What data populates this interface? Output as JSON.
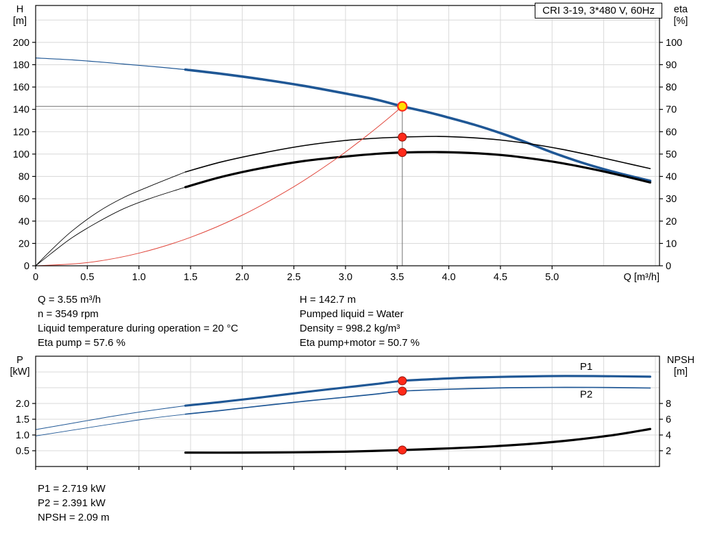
{
  "colors": {
    "curve_blue": "#1f5795",
    "curve_black": "#000000",
    "curve_red": "#e0453a",
    "marker_red": "#ff2a1a",
    "marker_yellow": "#ffdf00",
    "grid": "#d8d8d8",
    "crosshair": "#707070",
    "axis": "#000000"
  },
  "info_top": {
    "left": [
      "Q = 3.55 m³/h",
      "n = 3549 rpm",
      "Liquid temperature during operation = 20 °C",
      "Eta pump = 57.6 %"
    ],
    "right": [
      "H = 142.7 m",
      "Pumped liquid = Water",
      "Density = 998.2 kg/m³",
      "Eta pump+motor = 50.7 %"
    ]
  },
  "info_bottom": [
    "P1 = 2.719 kW",
    "P2 = 2.391 kW",
    "NPSH = 2.09 m"
  ],
  "chart_data": [
    {
      "id": "qh-eta",
      "type": "line",
      "title": "CRI 3-19, 3*480 V, 60Hz",
      "xlabel": "Q [m³/h]",
      "ylabel_left": [
        "H",
        "[m]"
      ],
      "ylabel_right": [
        "eta",
        "[%]"
      ],
      "xlim": [
        0,
        6.04
      ],
      "ylim_left": [
        0,
        233
      ],
      "ylim_right": [
        0,
        116.5
      ],
      "xticks": [
        0,
        0.5,
        1,
        1.5,
        2,
        2.5,
        3,
        3.5,
        4,
        4.5,
        5
      ],
      "xtick_labels": [
        "0",
        "0.5",
        "1.0",
        "1.5",
        "2.0",
        "2.5",
        "3.0",
        "3.5",
        "4.0",
        "4.5",
        "5.0"
      ],
      "yticks_left": [
        0,
        20,
        40,
        60,
        80,
        100,
        120,
        140,
        160,
        180,
        200
      ],
      "yticks_right": [
        0,
        10,
        20,
        30,
        40,
        50,
        60,
        70,
        80,
        90,
        100
      ],
      "grid_x": [
        0.5,
        1,
        1.5,
        2,
        2.5,
        3,
        3.5,
        4,
        4.5,
        5,
        5.5,
        6
      ],
      "grid_y_left": [
        20,
        40,
        60,
        80,
        100,
        120,
        140,
        160,
        180,
        200,
        220
      ],
      "grid_on": true,
      "duty_lines": {
        "x": 3.55,
        "value": 142.7,
        "axis": "left"
      },
      "series": [
        {
          "name": "head-curve-lead",
          "axis": "left",
          "color": "#1f5795",
          "width": 1.2,
          "points": [
            [
              0,
              186
            ],
            [
              0.3,
              184.6
            ],
            [
              0.6,
              182.6
            ],
            [
              0.9,
              180.2
            ],
            [
              1.2,
              177.8
            ],
            [
              1.45,
              175.6
            ]
          ]
        },
        {
          "name": "head-curve",
          "axis": "left",
          "color": "#1f5795",
          "width": 3.6,
          "points": [
            [
              1.45,
              175.6
            ],
            [
              1.8,
              171.8
            ],
            [
              2.2,
              166.8
            ],
            [
              2.6,
              161.0
            ],
            [
              3.0,
              154.2
            ],
            [
              3.3,
              148.7
            ],
            [
              3.55,
              142.7
            ],
            [
              3.8,
              137.4
            ],
            [
              4.0,
              132.6
            ],
            [
              4.25,
              126.2
            ],
            [
              4.5,
              118.8
            ],
            [
              4.75,
              110.5
            ],
            [
              5.0,
              101.5
            ],
            [
              5.3,
              92.0
            ],
            [
              5.6,
              84.0
            ],
            [
              5.95,
              76.0
            ]
          ]
        },
        {
          "name": "eta-pump-lead",
          "axis": "right",
          "color": "#000000",
          "width": 0.9,
          "points": [
            [
              0,
              0
            ],
            [
              0.15,
              7
            ],
            [
              0.35,
              15.5
            ],
            [
              0.6,
              24
            ],
            [
              0.85,
              30.5
            ],
            [
              1.1,
              35.5
            ],
            [
              1.45,
              42
            ]
          ]
        },
        {
          "name": "eta-pump",
          "axis": "right",
          "color": "#000000",
          "width": 1.6,
          "points": [
            [
              1.45,
              42
            ],
            [
              1.8,
              46.5
            ],
            [
              2.2,
              50.5
            ],
            [
              2.6,
              53.8
            ],
            [
              3.0,
              56.1
            ],
            [
              3.3,
              57.1
            ],
            [
              3.55,
              57.6
            ],
            [
              3.9,
              57.9
            ],
            [
              4.2,
              57.4
            ],
            [
              4.5,
              56.3
            ],
            [
              4.8,
              54.5
            ],
            [
              5.1,
              52.1
            ],
            [
              5.4,
              49.2
            ],
            [
              5.7,
              46.1
            ],
            [
              5.95,
              43.5
            ]
          ]
        },
        {
          "name": "eta-pump-motor-lead",
          "axis": "right",
          "color": "#000000",
          "width": 0.9,
          "points": [
            [
              0,
              0
            ],
            [
              0.15,
              5.5
            ],
            [
              0.35,
              12.5
            ],
            [
              0.6,
              19.5
            ],
            [
              0.85,
              25.5
            ],
            [
              1.1,
              30
            ],
            [
              1.45,
              35.2
            ]
          ]
        },
        {
          "name": "eta-pump-motor",
          "axis": "right",
          "color": "#000000",
          "width": 3.2,
          "points": [
            [
              1.45,
              35.2
            ],
            [
              1.8,
              39.8
            ],
            [
              2.2,
              43.8
            ],
            [
              2.6,
              46.9
            ],
            [
              3.0,
              48.9
            ],
            [
              3.3,
              50.1
            ],
            [
              3.55,
              50.7
            ],
            [
              3.9,
              50.9
            ],
            [
              4.2,
              50.5
            ],
            [
              4.5,
              49.6
            ],
            [
              4.8,
              48.0
            ],
            [
              5.1,
              45.9
            ],
            [
              5.4,
              43.2
            ],
            [
              5.7,
              40.1
            ],
            [
              5.95,
              37.3
            ]
          ]
        },
        {
          "name": "system-curve",
          "axis": "left",
          "color": "#e0453a",
          "width": 1,
          "points": [
            [
              0,
              0
            ],
            [
              0.5,
              2.8
            ],
            [
              1.0,
              11.3
            ],
            [
              1.5,
              25.5
            ],
            [
              2.0,
              45.3
            ],
            [
              2.5,
              70.8
            ],
            [
              2.9,
              95.2
            ],
            [
              3.2,
              116.0
            ],
            [
              3.4,
              130.9
            ],
            [
              3.55,
              142.7
            ]
          ]
        }
      ],
      "markers": [
        {
          "name": "eta-pump-point",
          "x": 3.55,
          "value": 57.6,
          "axis": "right",
          "fill": "#ff2a1a",
          "stroke": "#8f1008",
          "r": 6,
          "stroke_width": 1
        },
        {
          "name": "eta-pump-motor-point",
          "x": 3.55,
          "value": 50.7,
          "axis": "right",
          "fill": "#ff2a1a",
          "stroke": "#8f1008",
          "r": 6,
          "stroke_width": 1
        },
        {
          "name": "duty-point",
          "x": 3.55,
          "value": 142.7,
          "axis": "left",
          "fill": "#ffdf00",
          "stroke": "#ff2a1a",
          "r": 6.5,
          "stroke_width": 2.2
        }
      ],
      "labels": []
    },
    {
      "id": "power-npsh",
      "type": "line",
      "title": "",
      "xlabel": "",
      "ylabel_left": [
        "P",
        "[kW]"
      ],
      "ylabel_right": [
        "NPSH",
        "[m]"
      ],
      "xlim": [
        0,
        6.04
      ],
      "ylim_left": [
        0,
        3.5
      ],
      "ylim_right": [
        0,
        14
      ],
      "xticks": [
        0,
        0.5,
        1,
        1.5,
        2,
        2.5,
        3,
        3.5,
        4,
        4.5,
        5
      ],
      "xtick_labels": [],
      "yticks_left": [
        0.5,
        1,
        1.5,
        2
      ],
      "ytick_labels_left": [
        "0.5",
        "1.0",
        "1.5",
        "2.0"
      ],
      "yticks_right": [
        2,
        4,
        6,
        8
      ],
      "grid_x": [
        0.5,
        1,
        1.5,
        2,
        2.5,
        3,
        3.5,
        4,
        4.5,
        5,
        5.5,
        6
      ],
      "grid_y_left": [
        0.5,
        1,
        1.5,
        2,
        2.5,
        3
      ],
      "grid_on": true,
      "duty_lines": null,
      "series": [
        {
          "name": "p1-lead",
          "axis": "left",
          "color": "#1f5795",
          "width": 1,
          "points": [
            [
              0,
              1.17
            ],
            [
              0.35,
              1.37
            ],
            [
              0.7,
              1.57
            ],
            [
              1.05,
              1.75
            ],
            [
              1.45,
              1.93
            ]
          ]
        },
        {
          "name": "p1",
          "axis": "left",
          "color": "#1f5795",
          "width": 3.2,
          "points": [
            [
              1.45,
              1.93
            ],
            [
              1.8,
              2.05
            ],
            [
              2.2,
              2.2
            ],
            [
              2.6,
              2.36
            ],
            [
              3.0,
              2.51
            ],
            [
              3.3,
              2.62
            ],
            [
              3.55,
              2.719
            ],
            [
              3.9,
              2.78
            ],
            [
              4.2,
              2.82
            ],
            [
              4.6,
              2.85
            ],
            [
              5.0,
              2.87
            ],
            [
              5.4,
              2.87
            ],
            [
              5.95,
              2.85
            ]
          ]
        },
        {
          "name": "p2-lead",
          "axis": "left",
          "color": "#1f5795",
          "width": 0.9,
          "points": [
            [
              0,
              0.97
            ],
            [
              0.35,
              1.15
            ],
            [
              0.7,
              1.33
            ],
            [
              1.05,
              1.5
            ],
            [
              1.45,
              1.66
            ]
          ]
        },
        {
          "name": "p2",
          "axis": "left",
          "color": "#1f5795",
          "width": 1.7,
          "points": [
            [
              1.45,
              1.66
            ],
            [
              1.8,
              1.78
            ],
            [
              2.2,
              1.93
            ],
            [
              2.6,
              2.07
            ],
            [
              3.0,
              2.2
            ],
            [
              3.3,
              2.3
            ],
            [
              3.55,
              2.391
            ],
            [
              3.9,
              2.44
            ],
            [
              4.2,
              2.47
            ],
            [
              4.6,
              2.5
            ],
            [
              5.0,
              2.51
            ],
            [
              5.4,
              2.51
            ],
            [
              5.95,
              2.49
            ]
          ]
        },
        {
          "name": "npsh",
          "axis": "right",
          "color": "#000000",
          "width": 3.2,
          "points": [
            [
              1.45,
              1.76
            ],
            [
              2.0,
              1.76
            ],
            [
              2.5,
              1.8
            ],
            [
              3.0,
              1.88
            ],
            [
              3.55,
              2.09
            ],
            [
              4.0,
              2.3
            ],
            [
              4.4,
              2.54
            ],
            [
              4.8,
              2.88
            ],
            [
              5.2,
              3.36
            ],
            [
              5.6,
              4.0
            ],
            [
              5.95,
              4.76
            ]
          ]
        }
      ],
      "markers": [
        {
          "name": "p1-point",
          "x": 3.55,
          "value": 2.719,
          "axis": "left",
          "fill": "#ff2a1a",
          "stroke": "#8f1008",
          "r": 6,
          "stroke_width": 1
        },
        {
          "name": "p2-point",
          "x": 3.55,
          "value": 2.391,
          "axis": "left",
          "fill": "#ff2a1a",
          "stroke": "#8f1008",
          "r": 6,
          "stroke_width": 1
        },
        {
          "name": "npsh-point",
          "x": 3.55,
          "value": 2.09,
          "axis": "right",
          "fill": "#ff2a1a",
          "stroke": "#8f1008",
          "r": 6,
          "stroke_width": 1
        }
      ],
      "labels": [
        {
          "text": "P1",
          "x": 5.27,
          "value": 3.07,
          "axis": "left",
          "color": "#1f5795"
        },
        {
          "text": "P2",
          "x": 5.27,
          "value": 2.19,
          "axis": "left",
          "color": "#1f5795"
        }
      ]
    }
  ]
}
